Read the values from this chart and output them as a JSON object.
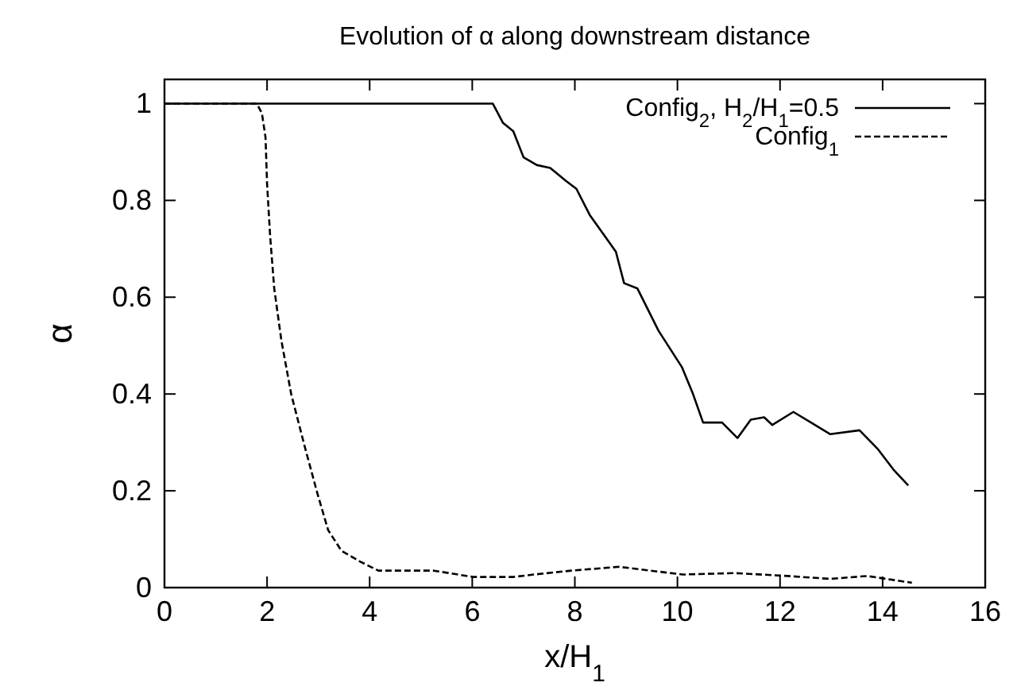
{
  "chart_data": {
    "type": "line",
    "title": "Evolution of α along downstream distance",
    "xlabel": "x/H$_{1}$",
    "ylabel": "α",
    "xlim": [
      0,
      16
    ],
    "ylim": [
      0,
      1.05
    ],
    "xticks": [
      0,
      2,
      4,
      6,
      8,
      10,
      12,
      14,
      16
    ],
    "yticks": [
      0,
      {
        "value": 0.2,
        "label": "0.2"
      },
      {
        "value": 0.4,
        "label": "0.4"
      },
      {
        "value": 0.6,
        "label": "0.6"
      },
      {
        "value": 0.8,
        "label": "0.8"
      },
      1
    ],
    "grid": false,
    "legend": "top right",
    "marker": "none",
    "series": [
      {
        "name": "Config$_{2}$, H$_{2}$/H$_{1}$=0.5",
        "color": "#000000",
        "line_style": "solid",
        "x": [
          0,
          6.4,
          6.6,
          6.8,
          7.0,
          7.26,
          7.52,
          7.83,
          8.03,
          8.29,
          8.8,
          8.96,
          9.22,
          9.63,
          10.09,
          10.3,
          10.5,
          10.87,
          11.17,
          11.43,
          11.69,
          11.85,
          12.26,
          12.98,
          13.55,
          13.9,
          14.21,
          14.5
        ],
        "values": [
          1,
          1,
          0.96,
          0.943,
          0.889,
          0.873,
          0.867,
          0.84,
          0.824,
          0.77,
          0.694,
          0.629,
          0.618,
          0.531,
          0.455,
          0.401,
          0.341,
          0.341,
          0.309,
          0.347,
          0.352,
          0.336,
          0.363,
          0.317,
          0.325,
          0.287,
          0.244,
          0.211
        ]
      },
      {
        "name": "Config$_{1}$",
        "color": "#000000",
        "line_style": "dashed",
        "x": [
          0,
          1.8,
          1.9,
          1.97,
          2.0,
          2.06,
          2.14,
          2.28,
          2.47,
          2.73,
          2.98,
          3.19,
          3.45,
          3.81,
          4.17,
          5.25,
          6.02,
          6.8,
          7.2,
          7.93,
          8.86,
          10.1,
          11.12,
          12.15,
          12.98,
          13.7,
          14.57
        ],
        "values": [
          1,
          1,
          0.98,
          0.93,
          0.835,
          0.726,
          0.618,
          0.51,
          0.4,
          0.293,
          0.195,
          0.119,
          0.076,
          0.054,
          0.035,
          0.035,
          0.022,
          0.022,
          0.027,
          0.035,
          0.043,
          0.027,
          0.03,
          0.024,
          0.018,
          0.024,
          0.01
        ]
      }
    ]
  }
}
